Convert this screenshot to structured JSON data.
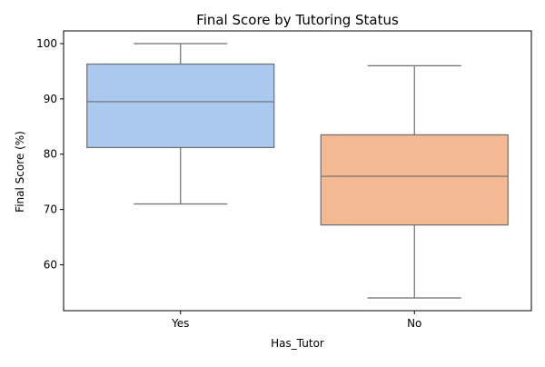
{
  "chart_data": {
    "type": "box",
    "title": "Final Score by Tutoring Status",
    "xlabel": "Has_Tutor",
    "ylabel": "Final Score (%)",
    "categories": [
      "Yes",
      "No"
    ],
    "ylim": [
      51.7,
      102.3
    ],
    "yticks": [
      60,
      70,
      80,
      90,
      100
    ],
    "grid": false,
    "legend": "none",
    "boxes": [
      {
        "category": "Yes",
        "whisker_low": 71,
        "q1": 81.2,
        "median": 89.5,
        "q3": 96.3,
        "whisker_high": 100,
        "color": "#abc9ef"
      },
      {
        "category": "No",
        "whisker_low": 54,
        "q1": 67.2,
        "median": 76.0,
        "q3": 83.5,
        "whisker_high": 96,
        "color": "#f2b992"
      }
    ],
    "line_color": "#6e6e6e"
  }
}
